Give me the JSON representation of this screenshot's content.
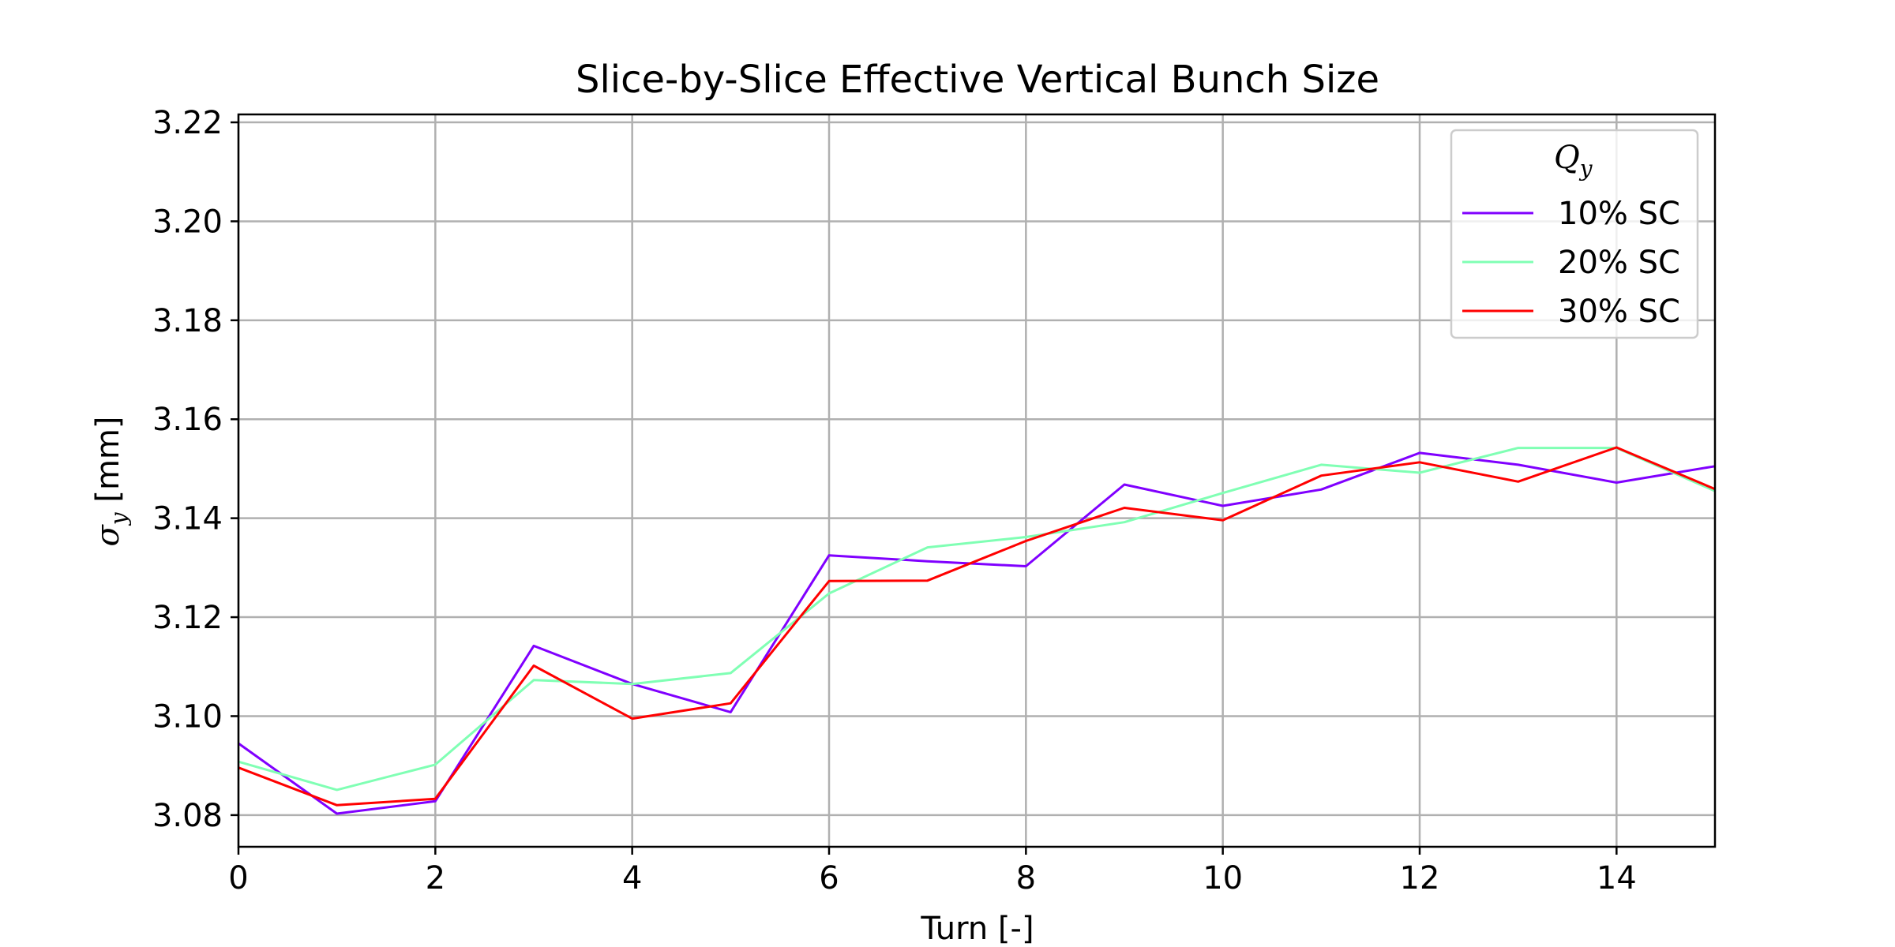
{
  "chart_data": {
    "type": "line",
    "title": "Slice-by-Slice Effective Vertical Bunch Size",
    "xlabel": "Turn [-]",
    "ylabel": "σ",
    "ylabel_subscript": "y",
    "ylabel_unit": " [mm]",
    "xlim": [
      0,
      15
    ],
    "ylim": [
      3.0736,
      3.2216
    ],
    "xticks": [
      0,
      2,
      4,
      6,
      8,
      10,
      12,
      14
    ],
    "xtick_labels": [
      "0",
      "2",
      "4",
      "6",
      "8",
      "10",
      "12",
      "14"
    ],
    "yticks": [
      3.08,
      3.1,
      3.12,
      3.14,
      3.16,
      3.18,
      3.2,
      3.22
    ],
    "ytick_labels": [
      "3.08",
      "3.10",
      "3.12",
      "3.14",
      "3.16",
      "3.18",
      "3.20",
      "3.22"
    ],
    "grid": true,
    "legend": {
      "title": "Q",
      "title_subscript": "y",
      "placement": "top-right"
    },
    "x": [
      0,
      1,
      2,
      3,
      4,
      5,
      6,
      7,
      8,
      9,
      10,
      11,
      12,
      13,
      14,
      15
    ],
    "series": [
      {
        "name": "10% SC",
        "color": "#8000ff",
        "values": [
          3.0945,
          3.0803,
          3.0828,
          3.1142,
          3.1065,
          3.1008,
          3.1325,
          3.1313,
          3.1303,
          3.1468,
          3.1425,
          3.1458,
          3.1532,
          3.1508,
          3.1472,
          3.1505
        ]
      },
      {
        "name": "20% SC",
        "color": "#80ffb4",
        "values": [
          3.0908,
          3.0851,
          3.0902,
          3.1073,
          3.1065,
          3.1087,
          3.1248,
          3.1341,
          3.1362,
          3.1392,
          3.1451,
          3.1508,
          3.1492,
          3.1542,
          3.1542,
          3.1455
        ]
      },
      {
        "name": "30% SC",
        "color": "#ff0000",
        "values": [
          3.0896,
          3.082,
          3.0833,
          3.1102,
          3.0995,
          3.1026,
          3.1273,
          3.1274,
          3.1354,
          3.1421,
          3.1396,
          3.1486,
          3.1513,
          3.1474,
          3.1543,
          3.1459
        ]
      }
    ]
  }
}
